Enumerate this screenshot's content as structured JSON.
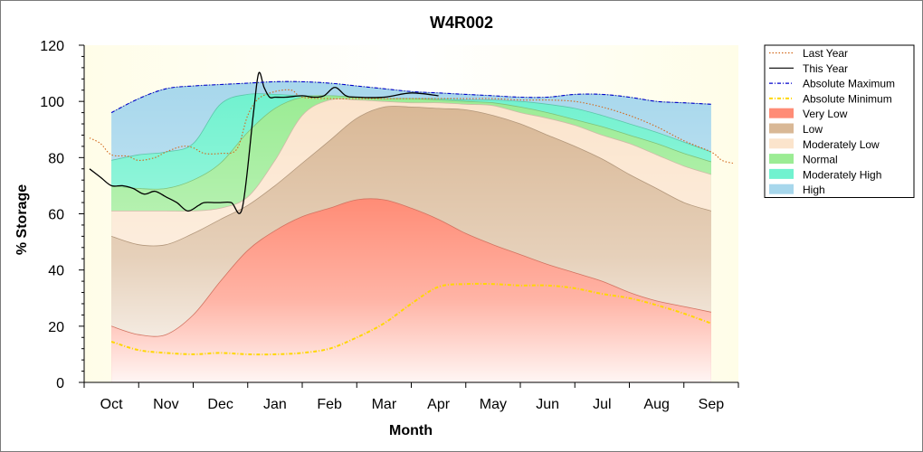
{
  "chart_data": {
    "type": "area",
    "title": "W4R002",
    "xlabel": "Month",
    "ylabel": "% Storage",
    "ylim": [
      0,
      120
    ],
    "yticks": [
      0,
      20,
      40,
      60,
      80,
      100,
      120
    ],
    "xlim": [
      -0.5,
      11.5
    ],
    "months": [
      "Oct",
      "Nov",
      "Dec",
      "Jan",
      "Feb",
      "Mar",
      "Apr",
      "May",
      "Jun",
      "Jul",
      "Aug",
      "Sep"
    ],
    "band_x": [
      0,
      0.5,
      1,
      1.5,
      2,
      2.5,
      3,
      3.5,
      4,
      4.5,
      5,
      5.5,
      6,
      6.5,
      7,
      7.5,
      8,
      8.5,
      9,
      9.5,
      10,
      10.5,
      11
    ],
    "bands": [
      {
        "name": "Very Low",
        "color": "#ff8c76",
        "top": [
          20,
          17,
          17,
          24,
          36,
          47,
          54,
          59,
          62,
          65,
          65,
          62,
          58,
          53,
          49,
          45.5,
          42,
          39,
          36,
          32,
          29,
          27,
          25
        ]
      },
      {
        "name": "Low",
        "color": "#d9b896",
        "top": [
          52,
          49,
          49,
          53,
          58,
          63,
          70,
          78,
          86,
          94,
          98,
          98,
          97.5,
          97,
          95,
          92,
          88,
          84,
          79.5,
          74,
          69,
          64,
          61
        ]
      },
      {
        "name": "Moderately Low",
        "color": "#fbe4cc",
        "top": [
          61,
          61,
          61,
          61,
          62,
          66,
          79,
          95,
          100.5,
          100.5,
          100,
          99.5,
          99.5,
          99,
          98.5,
          96,
          94,
          91.5,
          88,
          85,
          81,
          77,
          74
        ]
      },
      {
        "name": "Normal",
        "color": "#9bec94",
        "top": [
          70,
          69,
          69,
          72,
          78,
          89,
          97.5,
          101.5,
          102,
          101.5,
          101,
          101,
          100.5,
          100,
          99.5,
          98,
          96,
          93.5,
          91,
          88,
          85,
          81.5,
          78.5
        ]
      },
      {
        "name": "Moderately High",
        "color": "#71f2cf",
        "top": [
          79,
          81,
          82,
          85,
          99,
          102.5,
          102.5,
          102,
          102,
          101.5,
          101,
          101,
          101,
          100.5,
          100.5,
          100,
          99,
          97.5,
          95,
          92,
          89,
          85.5,
          82
        ]
      },
      {
        "name": "High",
        "color": "#a7d7ec",
        "top": [
          96,
          101,
          104.5,
          105.5,
          106,
          106.5,
          107,
          107,
          106.5,
          105.5,
          104.5,
          103.5,
          103,
          102.5,
          102,
          101.5,
          101.5,
          102.5,
          102.5,
          101.5,
          100,
          99.5,
          99
        ]
      }
    ],
    "series": [
      {
        "name": "Last Year",
        "color": "#d2691e",
        "style": "dotted",
        "x": [
          -0.4,
          -0.2,
          0,
          0.3,
          0.5,
          0.8,
          1,
          1.3,
          1.5,
          1.7,
          2,
          2.3,
          2.5,
          2.7,
          3,
          3.3,
          3.5,
          4,
          4.5,
          5,
          5.5,
          6,
          6.5,
          7,
          7.5,
          8,
          8.5,
          9,
          9.5,
          10,
          10.5,
          11,
          11.2,
          11.4
        ],
        "y": [
          87,
          85,
          81,
          80.5,
          79,
          80,
          82,
          84,
          83.5,
          81.5,
          81.5,
          83,
          95,
          101,
          103.5,
          104,
          101.5,
          101,
          101,
          101,
          101,
          101,
          101,
          101,
          100.5,
          100.5,
          100,
          98,
          95,
          91,
          86,
          82,
          79,
          78
        ]
      },
      {
        "name": "This Year",
        "color": "#000000",
        "style": "solid",
        "x": [
          -0.4,
          -0.2,
          0,
          0.2,
          0.4,
          0.6,
          0.8,
          1,
          1.2,
          1.4,
          1.6,
          1.7,
          1.9,
          2,
          2.2,
          2.4,
          2.6,
          2.7,
          2.8,
          2.9,
          3,
          3.2,
          3.5,
          3.7,
          3.9,
          4.1,
          4.3,
          4.5,
          5,
          5.5,
          6
        ],
        "y": [
          76,
          73,
          70,
          70,
          69,
          67,
          68,
          66,
          64,
          61,
          63,
          64,
          64,
          64,
          64,
          62,
          95,
          110,
          105,
          101.5,
          101.5,
          101.5,
          102,
          101.5,
          102,
          105,
          102,
          101.5,
          101.5,
          103,
          102
        ]
      },
      {
        "name": "Absolute Maximum",
        "color": "#0000cc",
        "style": "dash-dot",
        "x": [
          0,
          0.5,
          1,
          1.5,
          2,
          2.5,
          3,
          3.5,
          4,
          4.5,
          5,
          5.5,
          6,
          6.5,
          7,
          7.5,
          8,
          8.5,
          9,
          9.5,
          10,
          10.5,
          11
        ],
        "y": [
          96,
          101,
          104.5,
          105.5,
          106,
          106.5,
          107,
          107,
          106.5,
          105.5,
          104.5,
          103.5,
          103,
          102.5,
          102,
          101.5,
          101.5,
          102.5,
          102.5,
          101.5,
          100,
          99.5,
          99
        ]
      },
      {
        "name": "Absolute Minimum",
        "color": "#ffd700",
        "style": "dash-dot",
        "x": [
          0,
          0.5,
          1,
          1.5,
          2,
          2.5,
          3,
          3.5,
          4,
          4.5,
          5,
          5.5,
          6,
          6.5,
          7,
          7.5,
          8,
          8.5,
          9,
          9.5,
          10,
          10.5,
          11
        ],
        "y": [
          14.5,
          11.5,
          10.5,
          10,
          10.5,
          10,
          10,
          10.5,
          12,
          16,
          21,
          28,
          34,
          35,
          35,
          34.5,
          34.5,
          33.5,
          31.5,
          30,
          27.5,
          24.5,
          21
        ]
      }
    ],
    "legend_position": "top-right",
    "legend": [
      {
        "label": "Last Year",
        "kind": "line",
        "color": "#d2691e",
        "style": "dotted"
      },
      {
        "label": "This Year",
        "kind": "line",
        "color": "#000000",
        "style": "solid"
      },
      {
        "label": "Absolute Maximum",
        "kind": "line",
        "color": "#0000cc",
        "style": "dash-dot"
      },
      {
        "label": "Absolute Minimum",
        "kind": "line",
        "color": "#ffd700",
        "style": "dash-dot"
      },
      {
        "label": "Very Low",
        "kind": "fill",
        "color": "#ff8c76"
      },
      {
        "label": "Low",
        "kind": "fill",
        "color": "#d9b896"
      },
      {
        "label": "Moderately Low",
        "kind": "fill",
        "color": "#fbe4cc"
      },
      {
        "label": "Normal",
        "kind": "fill",
        "color": "#9bec94"
      },
      {
        "label": "Moderately High",
        "kind": "fill",
        "color": "#71f2cf"
      },
      {
        "label": "High",
        "kind": "fill",
        "color": "#a7d7ec"
      }
    ],
    "background_color": "#fffde8",
    "grid": false
  }
}
